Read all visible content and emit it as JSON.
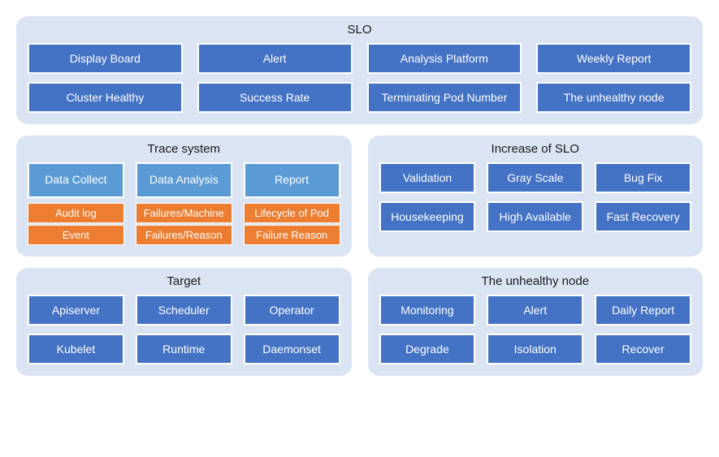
{
  "type": "infographic",
  "background_color": "#ffffff",
  "panel_bg": "#dae4f2",
  "box_bg": "#4472c4",
  "box_border": "#ffffff",
  "trace_head_bg": "#5b9bd5",
  "trace_item_bg": "#ed7d31",
  "title_fontsize": 15,
  "box_fontsize": 14,
  "slo": {
    "title": "SLO",
    "row1": [
      "Display Board",
      "Alert",
      "Analysis Platform",
      "Weekly Report"
    ],
    "row2": [
      "Cluster Healthy",
      "Success Rate",
      "Terminating Pod Number",
      "The unhealthy node"
    ]
  },
  "trace": {
    "title": "Trace system",
    "columns": [
      {
        "head": "Data Collect",
        "items": [
          "Audit log",
          "Event"
        ]
      },
      {
        "head": "Data Analysis",
        "items": [
          "Failures/Machine",
          "Failures/Reason"
        ]
      },
      {
        "head": "Report",
        "items": [
          "Lifecycle of Pod",
          "Failure Reason"
        ]
      }
    ]
  },
  "increase": {
    "title": "Increase of SLO",
    "row1": [
      "Validation",
      "Gray Scale",
      "Bug Fix"
    ],
    "row2": [
      "Housekeeping",
      "High Available",
      "Fast Recovery"
    ]
  },
  "target": {
    "title": "Target",
    "row1": [
      "Apiserver",
      "Scheduler",
      "Operator"
    ],
    "row2": [
      "Kubelet",
      "Runtime",
      "Daemonset"
    ]
  },
  "unhealthy": {
    "title": "The unhealthy node",
    "row1": [
      "Monitoring",
      "Alert",
      "Daily Report"
    ],
    "row2": [
      "Degrade",
      "Isolation",
      "Recover"
    ]
  }
}
